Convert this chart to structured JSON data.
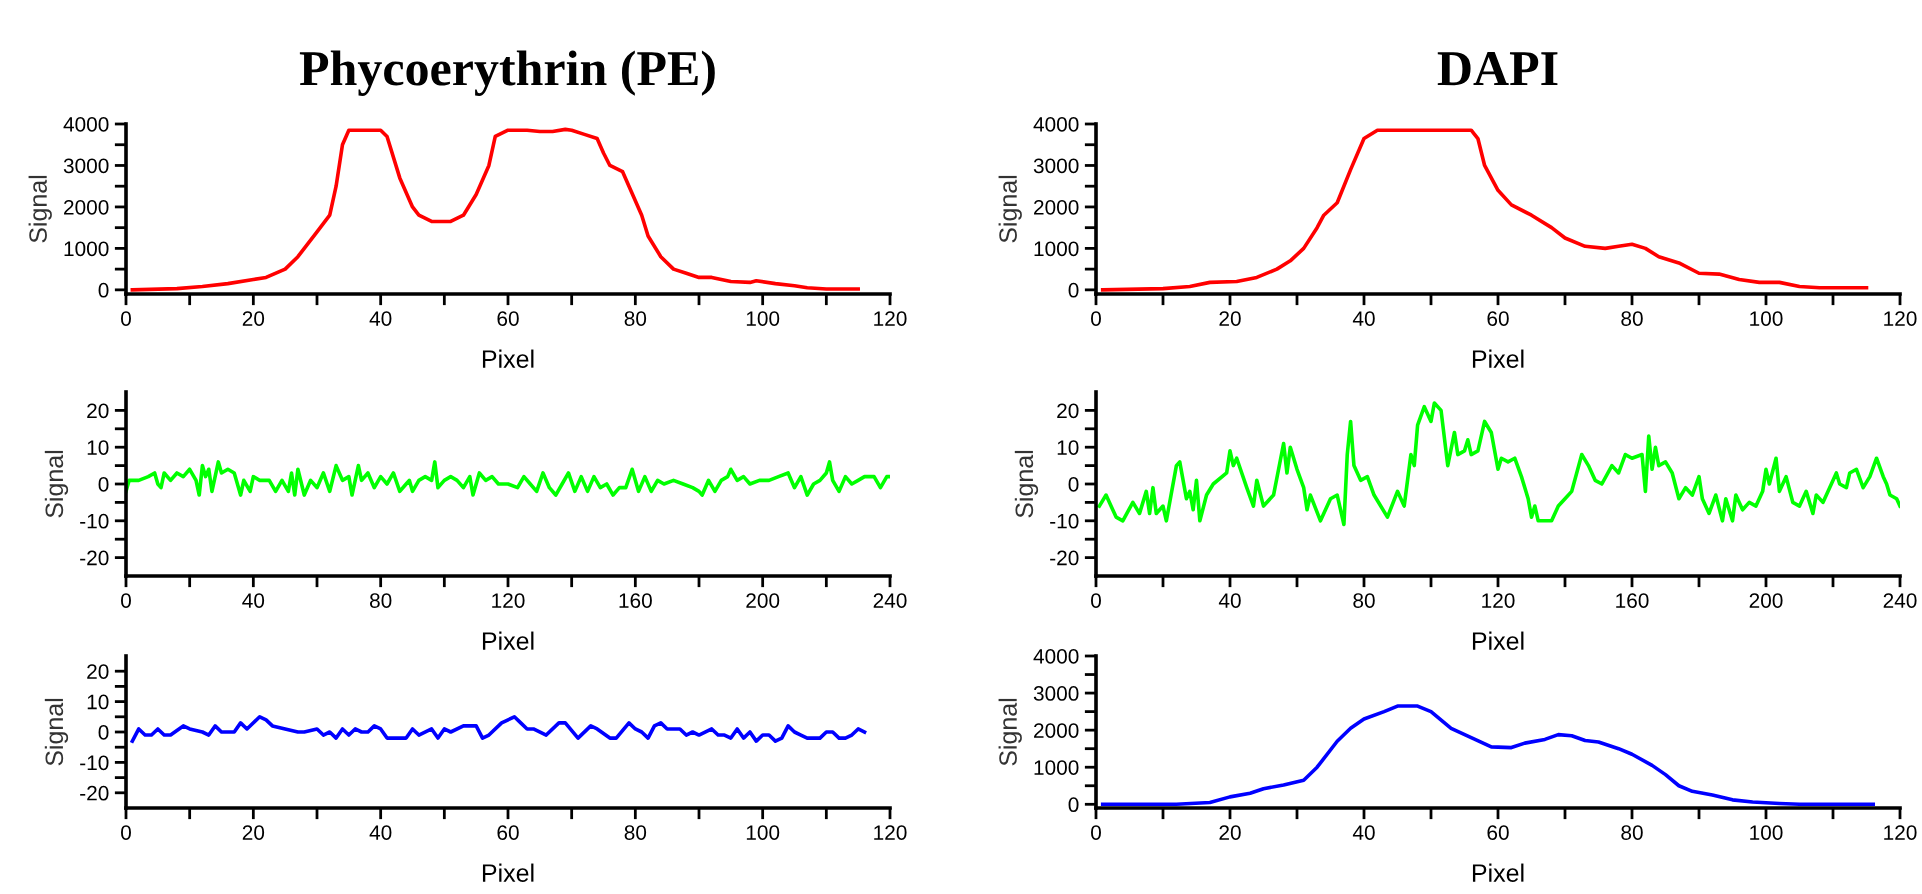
{
  "chart_data": [
    {
      "type": "line",
      "title": "Phycoerythrin (PE)",
      "xlabel": "Pixel",
      "ylabel": "Signal",
      "xlim": [
        0,
        120
      ],
      "ylim": [
        -100,
        4000
      ],
      "xticks": [
        0,
        {
          "value": 10,
          "label": null
        },
        20,
        {
          "value": 30,
          "label": null
        },
        40,
        {
          "value": 50,
          "label": null
        },
        60,
        {
          "value": 70,
          "label": null
        },
        80,
        {
          "value": 90,
          "label": null
        },
        100,
        {
          "value": 110,
          "label": null
        },
        120
      ],
      "yticks": [
        0,
        {
          "value": 500,
          "label": null
        },
        1000,
        {
          "value": 1500,
          "label": null
        },
        2000,
        {
          "value": 2500,
          "label": null
        },
        3000,
        {
          "value": 3500,
          "label": null
        },
        4000
      ],
      "grid": false,
      "legend": false,
      "marker": "none",
      "line_style": "solid",
      "series": [
        {
          "color": "#ff0000",
          "x": [
            1,
            8,
            12,
            16,
            20,
            22,
            25,
            27,
            30,
            32,
            33,
            34,
            35,
            40,
            41,
            43,
            45,
            46,
            48,
            51,
            53,
            55,
            57,
            58,
            60,
            63,
            65,
            67,
            69,
            70,
            72,
            74,
            75,
            76,
            78,
            79,
            81,
            82,
            84,
            86,
            88,
            90,
            92,
            95,
            98,
            99,
            102,
            105,
            107,
            110,
            115
          ],
          "values": [
            0,
            30,
            80,
            150,
            250,
            300,
            500,
            800,
            1400,
            1800,
            2500,
            3500,
            3850,
            3850,
            3700,
            2700,
            2000,
            1800,
            1650,
            1650,
            1800,
            2300,
            3000,
            3700,
            3850,
            3850,
            3820,
            3820,
            3870,
            3850,
            3750,
            3650,
            3300,
            3000,
            2850,
            2500,
            1800,
            1300,
            800,
            500,
            400,
            300,
            300,
            200,
            180,
            220,
            150,
            100,
            50,
            20,
            20
          ]
        }
      ]
    },
    {
      "type": "line",
      "title": "DAPI",
      "xlabel": "Pixel",
      "ylabel": "Signal",
      "xlim": [
        0,
        120
      ],
      "ylim": [
        -100,
        4000
      ],
      "xticks": [
        0,
        {
          "value": 10,
          "label": null
        },
        20,
        {
          "value": 30,
          "label": null
        },
        40,
        {
          "value": 50,
          "label": null
        },
        60,
        {
          "value": 70,
          "label": null
        },
        80,
        {
          "value": 90,
          "label": null
        },
        100,
        {
          "value": 110,
          "label": null
        },
        120
      ],
      "yticks": [
        0,
        {
          "value": 500,
          "label": null
        },
        1000,
        {
          "value": 1500,
          "label": null
        },
        2000,
        {
          "value": 2500,
          "label": null
        },
        3000,
        {
          "value": 3500,
          "label": null
        },
        4000
      ],
      "grid": false,
      "legend": false,
      "marker": "none",
      "line_style": "solid",
      "series": [
        {
          "color": "#ff0000",
          "x": [
            1,
            10,
            14,
            17,
            21,
            24,
            27,
            29,
            31,
            33,
            34,
            36,
            38,
            40,
            42,
            56,
            57,
            58,
            60,
            62,
            65,
            68,
            70,
            73,
            76,
            78,
            80,
            82,
            84,
            87,
            90,
            93,
            96,
            99,
            102,
            105,
            108,
            115
          ],
          "values": [
            0,
            30,
            80,
            180,
            200,
            300,
            500,
            700,
            1000,
            1500,
            1800,
            2100,
            2900,
            3650,
            3850,
            3850,
            3650,
            3000,
            2400,
            2050,
            1800,
            1500,
            1250,
            1050,
            1000,
            1050,
            1100,
            1000,
            800,
            650,
            400,
            380,
            250,
            180,
            180,
            80,
            50,
            50
          ]
        }
      ]
    },
    {
      "type": "line",
      "xlabel": "Pixel",
      "ylabel": "Signal",
      "xlim": [
        0,
        240
      ],
      "ylim": [
        -25,
        25
      ],
      "xticks": [
        0,
        {
          "value": 20,
          "label": null
        },
        40,
        {
          "value": 60,
          "label": null
        },
        80,
        {
          "value": 100,
          "label": null
        },
        120,
        {
          "value": 140,
          "label": null
        },
        160,
        {
          "value": 180,
          "label": null
        },
        200,
        {
          "value": 220,
          "label": null
        },
        240
      ],
      "yticks": [
        -20,
        {
          "value": -15,
          "label": null
        },
        -10,
        {
          "value": -5,
          "label": null
        },
        0,
        {
          "value": 5,
          "label": null
        },
        10,
        {
          "value": 15,
          "label": null
        },
        20
      ],
      "grid": false,
      "legend": false,
      "marker": "none",
      "line_style": "solid",
      "series": [
        {
          "color": "#00ff00",
          "x": [
            0,
            1,
            4,
            7,
            9,
            10,
            11,
            12,
            14,
            16,
            18,
            20,
            22,
            23,
            24,
            25,
            26,
            27,
            29,
            30,
            32,
            34,
            36,
            37,
            39,
            40,
            42,
            45,
            47,
            49,
            51,
            52,
            53,
            54,
            56,
            58,
            60,
            62,
            64,
            66,
            68,
            70,
            71,
            73,
            74,
            76,
            78,
            80,
            82,
            84,
            86,
            88,
            89,
            90,
            92,
            94,
            96,
            97,
            98,
            100,
            102,
            104,
            106,
            108,
            109,
            111,
            113,
            115,
            117,
            120,
            123,
            125,
            127,
            129,
            131,
            133,
            135,
            137,
            139,
            141,
            143,
            145,
            147,
            149,
            151,
            153,
            155,
            157,
            159,
            161,
            163,
            165,
            167,
            169,
            172,
            175,
            178,
            180,
            181,
            183,
            185,
            187,
            189,
            190,
            192,
            194,
            196,
            199,
            202,
            205,
            208,
            210,
            212,
            214,
            216,
            218,
            220,
            221,
            222,
            224,
            226,
            228,
            230,
            232,
            235,
            237,
            239,
            240
          ],
          "values": [
            -2,
            1,
            1,
            2,
            3,
            0,
            -1,
            3,
            1,
            3,
            2,
            4,
            1,
            -3,
            5,
            2,
            4,
            -2,
            6,
            3,
            4,
            3,
            -3,
            1,
            -2,
            2,
            1,
            1,
            -2,
            1,
            -2,
            3,
            -3,
            4,
            -3,
            1,
            -1,
            3,
            -2,
            5,
            1,
            2,
            -3,
            5,
            1,
            3,
            -1,
            2,
            0,
            3,
            -2,
            0,
            1,
            -2,
            1,
            2,
            1,
            6,
            -1,
            1,
            2,
            1,
            -1,
            2,
            -3,
            3,
            1,
            2,
            0,
            0,
            -1,
            2,
            0,
            -2,
            3,
            -1,
            -3,
            0,
            3,
            -2,
            2,
            -2,
            2,
            -1,
            0,
            -3,
            -1,
            -1,
            4,
            -2,
            2,
            -2,
            1,
            0,
            1,
            0,
            -1,
            -2,
            -3,
            1,
            -2,
            1,
            2,
            4,
            1,
            2,
            0,
            1,
            1,
            2,
            3,
            -1,
            2,
            -3,
            0,
            1,
            3,
            6,
            1,
            -2,
            2,
            0,
            1,
            2,
            2,
            -1,
            2,
            2
          ]
        }
      ]
    },
    {
      "type": "line",
      "xlabel": "Pixel",
      "ylabel": "Signal",
      "xlim": [
        0,
        240
      ],
      "ylim": [
        -25,
        25
      ],
      "xticks": [
        0,
        {
          "value": 20,
          "label": null
        },
        40,
        {
          "value": 60,
          "label": null
        },
        80,
        {
          "value": 100,
          "label": null
        },
        120,
        {
          "value": 140,
          "label": null
        },
        160,
        {
          "value": 180,
          "label": null
        },
        200,
        {
          "value": 220,
          "label": null
        },
        240
      ],
      "yticks": [
        -20,
        {
          "value": -15,
          "label": null
        },
        -10,
        {
          "value": -5,
          "label": null
        },
        0,
        {
          "value": 5,
          "label": null
        },
        10,
        {
          "value": 15,
          "label": null
        },
        20
      ],
      "grid": false,
      "legend": false,
      "marker": "none",
      "line_style": "solid",
      "series": [
        {
          "color": "#00ff00",
          "x": [
            1,
            3,
            6,
            8,
            11,
            13,
            15,
            16,
            17,
            18,
            20,
            21,
            24,
            25,
            27,
            28,
            29,
            30,
            31,
            33,
            35,
            39,
            40,
            41,
            42,
            45,
            47,
            48,
            50,
            53,
            56,
            57,
            58,
            60,
            62,
            63,
            64,
            67,
            70,
            72,
            74,
            75,
            76,
            77,
            79,
            81,
            83,
            87,
            90,
            92,
            94,
            95,
            96,
            98,
            100,
            101,
            103,
            105,
            107,
            108,
            110,
            111,
            112,
            114,
            116,
            118,
            120,
            121,
            123,
            125,
            127,
            129,
            130,
            131,
            132,
            136,
            138,
            140,
            142,
            145,
            147,
            149,
            151,
            154,
            156,
            158,
            160,
            163,
            164,
            165,
            166,
            167,
            168,
            170,
            172,
            174,
            176,
            178,
            180,
            181,
            183,
            185,
            187,
            188,
            190,
            191,
            193,
            195,
            197,
            199,
            200,
            201,
            203,
            204,
            206,
            208,
            210,
            212,
            214,
            215,
            217,
            219,
            221,
            222,
            224,
            225,
            227,
            229,
            231,
            233,
            235,
            236,
            237,
            239,
            240
          ],
          "values": [
            -6,
            -3,
            -9,
            -10,
            -5,
            -8,
            -2,
            -8,
            -1,
            -8,
            -6,
            -10,
            5,
            6,
            -4,
            -2,
            -7,
            1,
            -10,
            -3,
            0,
            3,
            9,
            5,
            7,
            -1,
            -6,
            1,
            -6,
            -3,
            11,
            3,
            10,
            4,
            -1,
            -7,
            -3,
            -10,
            -4,
            -3,
            -11,
            8,
            17,
            5,
            1,
            2,
            -3,
            -9,
            -2,
            -6,
            8,
            5,
            16,
            21,
            17,
            22,
            20,
            5,
            14,
            8,
            9,
            12,
            8,
            9,
            17,
            14,
            4,
            7,
            6,
            7,
            2,
            -4,
            -9,
            -6,
            -10,
            -10,
            -6,
            -4,
            -2,
            8,
            5,
            1,
            0,
            5,
            3,
            8,
            7,
            8,
            -2,
            13,
            4,
            10,
            5,
            6,
            3,
            -4,
            -1,
            -3,
            2,
            -4,
            -8,
            -3,
            -10,
            -4,
            -10,
            -3,
            -7,
            -5,
            -6,
            -2,
            4,
            0,
            7,
            -2,
            2,
            -5,
            -6,
            -2,
            -8,
            -3,
            -5,
            -1,
            3,
            0,
            -1,
            3,
            4,
            -1,
            2,
            7,
            2,
            0,
            -3,
            -4,
            -6
          ]
        }
      ]
    },
    {
      "type": "line",
      "xlabel": "Pixel",
      "ylabel": "Signal",
      "xlim": [
        0,
        120
      ],
      "ylim": [
        -25,
        25
      ],
      "xticks": [
        0,
        {
          "value": 10,
          "label": null
        },
        20,
        {
          "value": 30,
          "label": null
        },
        40,
        {
          "value": 50,
          "label": null
        },
        60,
        {
          "value": 70,
          "label": null
        },
        80,
        {
          "value": 90,
          "label": null
        },
        100,
        {
          "value": 110,
          "label": null
        },
        120
      ],
      "yticks": [
        -20,
        {
          "value": -15,
          "label": null
        },
        -10,
        {
          "value": -5,
          "label": null
        },
        0,
        {
          "value": 5,
          "label": null
        },
        10,
        {
          "value": 15,
          "label": null
        },
        20
      ],
      "grid": false,
      "legend": false,
      "marker": "none",
      "line_style": "solid",
      "series": [
        {
          "color": "#0000ff",
          "x": [
            1,
            2,
            3,
            4,
            5,
            6,
            7,
            9,
            10,
            12,
            13,
            14,
            15,
            17,
            18,
            19,
            21,
            22,
            23,
            25,
            27,
            28,
            30,
            31,
            32,
            33,
            34,
            35,
            36,
            37,
            38,
            39,
            40,
            41,
            44,
            45,
            46,
            48,
            49,
            50,
            51,
            53,
            55,
            56,
            57,
            59,
            61,
            62,
            63,
            64,
            66,
            68,
            69,
            71,
            73,
            74,
            76,
            77,
            79,
            80,
            81,
            82,
            83,
            84,
            85,
            87,
            88,
            89,
            90,
            92,
            93,
            94,
            95,
            96,
            97,
            98,
            99,
            100,
            101,
            102,
            103,
            104,
            105,
            106,
            107,
            109,
            110,
            111,
            112,
            113,
            114,
            115,
            116
          ],
          "values": [
            -3,
            1,
            -1,
            -1,
            1,
            -1,
            -1,
            2,
            1,
            0,
            -1,
            2,
            0,
            0,
            3,
            1,
            5,
            4,
            2,
            1,
            0,
            0,
            1,
            -1,
            0,
            -2,
            1,
            -1,
            1,
            0,
            0,
            2,
            1,
            -2,
            -2,
            1,
            -1,
            1,
            -2,
            1,
            0,
            2,
            2,
            -2,
            -1,
            3,
            5,
            3,
            1,
            1,
            -1,
            3,
            3,
            -2,
            2,
            1,
            -2,
            -2,
            3,
            1,
            0,
            -2,
            2,
            3,
            1,
            1,
            -1,
            0,
            -1,
            1,
            -1,
            -1,
            -2,
            1,
            -2,
            0,
            -3,
            -1,
            -1,
            -3,
            -2,
            2,
            0,
            -1,
            -2,
            -2,
            0,
            0,
            -2,
            -2,
            -1,
            1,
            0
          ]
        }
      ]
    },
    {
      "type": "line",
      "xlabel": "Pixel",
      "ylabel": "Signal",
      "xlim": [
        0,
        120
      ],
      "ylim": [
        -100,
        4000
      ],
      "xticks": [
        0,
        {
          "value": 10,
          "label": null
        },
        20,
        {
          "value": 30,
          "label": null
        },
        40,
        {
          "value": 50,
          "label": null
        },
        60,
        {
          "value": 70,
          "label": null
        },
        80,
        {
          "value": 90,
          "label": null
        },
        100,
        {
          "value": 110,
          "label": null
        },
        120
      ],
      "yticks": [
        0,
        {
          "value": 500,
          "label": null
        },
        1000,
        {
          "value": 1500,
          "label": null
        },
        2000,
        {
          "value": 2500,
          "label": null
        },
        3000,
        {
          "value": 3500,
          "label": null
        },
        4000
      ],
      "grid": false,
      "legend": false,
      "marker": "none",
      "line_style": "solid",
      "series": [
        {
          "color": "#0000ff",
          "x": [
            1,
            12,
            17,
            20,
            23,
            25,
            28,
            31,
            33,
            36,
            38,
            40,
            43,
            45,
            48,
            50,
            53,
            56,
            59,
            62,
            64,
            67,
            69,
            71,
            73,
            75,
            78,
            80,
            83,
            85,
            87,
            89,
            92,
            95,
            98,
            102,
            105,
            116
          ],
          "values": [
            0,
            0,
            50,
            200,
            300,
            420,
            520,
            650,
            1000,
            1700,
            2050,
            2300,
            2500,
            2650,
            2650,
            2500,
            2050,
            1800,
            1550,
            1530,
            1650,
            1750,
            1880,
            1850,
            1720,
            1680,
            1500,
            1350,
            1050,
            800,
            500,
            350,
            250,
            120,
            60,
            20,
            0,
            0
          ]
        }
      ]
    }
  ]
}
